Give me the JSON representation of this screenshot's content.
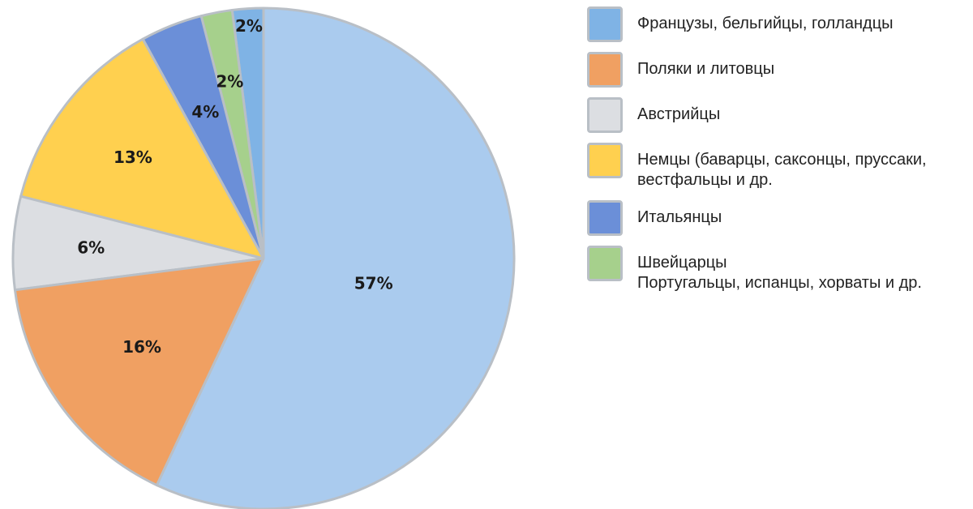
{
  "chart_data": {
    "type": "pie",
    "title": "",
    "legend_position": "right",
    "slices": [
      {
        "label": "Французы, бельгийцы, голландцы",
        "value": 2,
        "value_label": "2%",
        "color": "#7fb3e5"
      },
      {
        "label": "Швейцарцы\nПортугальцы, испанцы, хорваты и др.",
        "value": 2,
        "value_label": "2%",
        "color": "#a6d08c"
      },
      {
        "label": "Итальянцы",
        "value": 4,
        "value_label": "4%",
        "color": "#6b8fd8"
      },
      {
        "label": "Немцы (баварцы, саксонцы, пруссаки,\nвестфальцы и др.",
        "value": 13,
        "value_label": "13%",
        "color": "#ffd04f"
      },
      {
        "label": "Австрийцы",
        "value": 6,
        "value_label": "6%",
        "color": "#dcdee2"
      },
      {
        "label": "Поляки и литовцы",
        "value": 16,
        "value_label": "16%",
        "color": "#f0a062"
      },
      {
        "label": "",
        "value": 57,
        "value_label": "57%",
        "color": "#aacbee"
      }
    ],
    "legend": [
      {
        "label": "Французы, бельгийцы, голландцы",
        "color": "#7fb3e5"
      },
      {
        "label": "Поляки и литовцы",
        "color": "#f0a062"
      },
      {
        "label": "Австрийцы",
        "color": "#dcdee2"
      },
      {
        "label": "Немцы (баварцы, саксонцы, пруссаки,\nвестфальцы и др.",
        "color": "#ffd04f"
      },
      {
        "label": "Итальянцы",
        "color": "#6b8fd8"
      },
      {
        "label": "Швейцарцы\nПортугальцы, испанцы, хорваты и др.",
        "color": "#a6d08c"
      }
    ]
  }
}
